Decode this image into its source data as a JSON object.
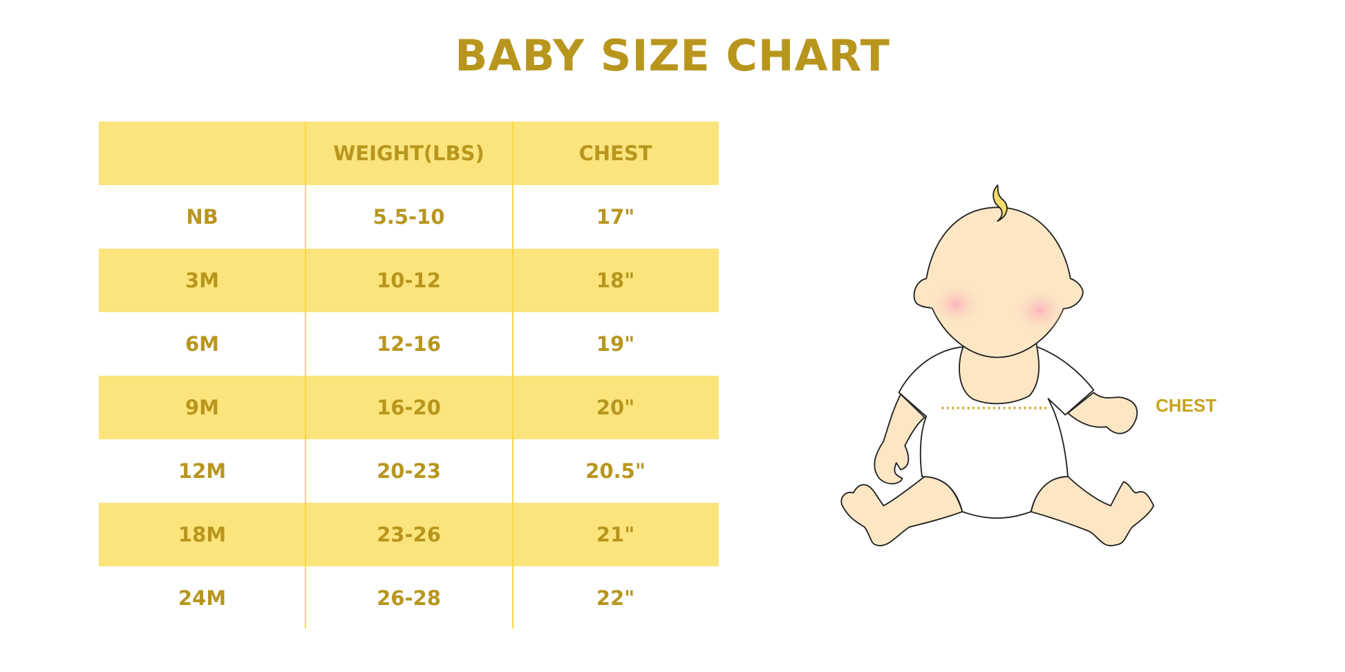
{
  "title": "BABY SIZE CHART",
  "colors": {
    "text": "#b8961e",
    "band": "#fbe47c",
    "divider": "#f7d84a"
  },
  "table": {
    "headers": [
      "",
      "WEIGHT(LBS)",
      "CHEST"
    ],
    "rows": [
      [
        "NB",
        "5.5-10",
        "17\""
      ],
      [
        "3M",
        "10-12",
        "18\""
      ],
      [
        "6M",
        "12-16",
        "19\""
      ],
      [
        "9M",
        "16-20",
        "20\""
      ],
      [
        "12M",
        "20-23",
        "20.5\""
      ],
      [
        "18M",
        "23-26",
        "21\""
      ],
      [
        "24M",
        "26-28",
        "22\""
      ]
    ]
  },
  "illustration": {
    "chest_label": "CHEST"
  }
}
